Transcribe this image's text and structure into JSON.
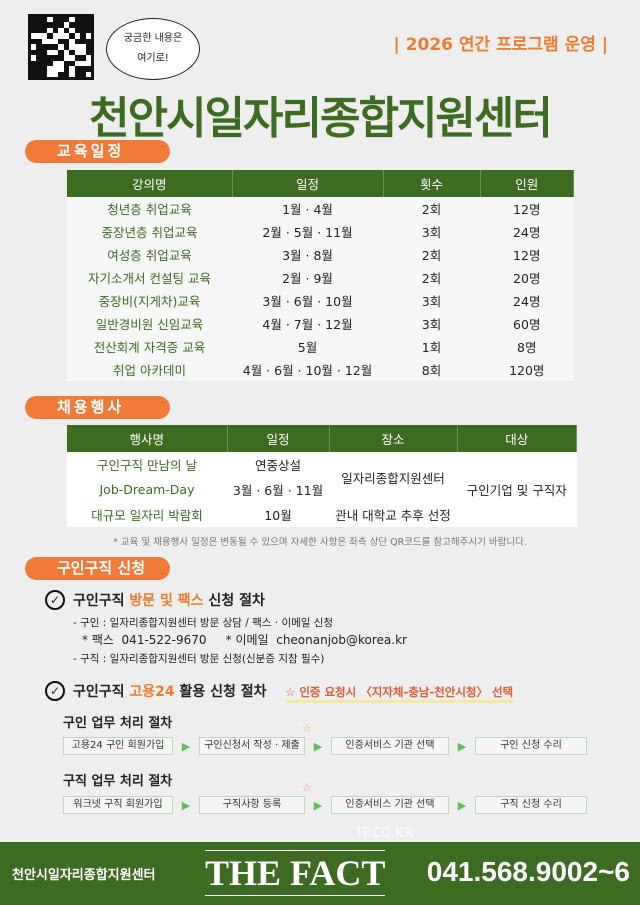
{
  "header": {
    "bubble_line1": "궁금한 내용은",
    "bubble_line2": "여기로!",
    "tagline": "| 2026 연간 프로그램 운영 |",
    "title": "천안시일자리종합지원센터"
  },
  "education": {
    "section_label": "교육일정",
    "columns": [
      "강의명",
      "일정",
      "횟수",
      "인원"
    ],
    "rows": [
      [
        "청년층 취업교육",
        "1월 · 4월",
        "2회",
        "12명"
      ],
      [
        "중장년층 취업교육",
        "2월 · 5월 · 11월",
        "3회",
        "24명"
      ],
      [
        "여성층 취업교육",
        "3월 · 8월",
        "2회",
        "12명"
      ],
      [
        "자기소개서 컨설팅 교육",
        "2월 · 9월",
        "2회",
        "20명"
      ],
      [
        "중장비(지게차)교육",
        "3월 · 6월 · 10월",
        "3회",
        "24명"
      ],
      [
        "일반경비원 신임교육",
        "4월 · 7월 · 12월",
        "3회",
        "60명"
      ],
      [
        "전산회계 자격증 교육",
        "5월",
        "1회",
        "8명"
      ],
      [
        "취업 아카데미",
        "4월 · 6월 · 10월 · 12월",
        "8회",
        "120명"
      ]
    ]
  },
  "events": {
    "section_label": "채용행사",
    "columns": [
      "행사명",
      "일정",
      "장소",
      "대상"
    ],
    "rows": [
      {
        "name": "구인구직 만남의 날",
        "schedule": "연중상설"
      },
      {
        "name": "Job-Dream-Day",
        "schedule": "3월 · 6월 · 11월"
      },
      {
        "name": "대규모 일자리 박람회",
        "schedule": "10월"
      }
    ],
    "place_center": "일자리종합지원센터",
    "place_univ": "관내 대학교 추후 선정",
    "target": "구인기업 및 구직자",
    "note": "* 교육 및 채용행사 일정은 변동될 수 있으며 자세한 사항은 좌측 상단 QR코드를 참고해주시기 바랍니다."
  },
  "apply": {
    "section_label": "구인구직 신청",
    "visit": {
      "h_pre": "구인구직 ",
      "h_hl": "방문 및 팩스",
      "h_post": " 신청 절차",
      "line1": "- 구인 : 일자리종합지원센터 방문 상담 / 팩스 · 이메일 신청",
      "fax_label": "* 팩스",
      "fax": "041-522-9670",
      "email_label": "* 이메일",
      "email": "cheonanjob@korea.kr",
      "line3": "- 구직 : 일자리종합지원센터 방문 신청(신분증 지참 필수)"
    },
    "online": {
      "h_pre": "구인구직 ",
      "h_hl": "고용24",
      "h_post": " 활용 신청 절차",
      "notice": "☆ 인증 요청시 〈지자체-충남-천안시청〉 선택",
      "employer_title": "구인 업무 처리 절차",
      "employer_steps": [
        "고용24 구인 회원가입",
        "구인신청서 작성 · 제출",
        "인증서비스 기관 선택",
        "구인 신청 수리"
      ],
      "seeker_title": "구직 업무 처리 절차",
      "seeker_steps": [
        "워크넷 구직 회원가입",
        "구직사항 등록",
        "인증서비스 기관 선택",
        "구직 신청 수리"
      ]
    }
  },
  "footer": {
    "name": "천안시일자리종합지원센터",
    "phone": "041.568.9002~6"
  },
  "watermark": {
    "site": "TF.CO.KR",
    "brand": "THE FACT"
  },
  "colors": {
    "green": "#3e6b22",
    "orange": "#f07a3a"
  }
}
